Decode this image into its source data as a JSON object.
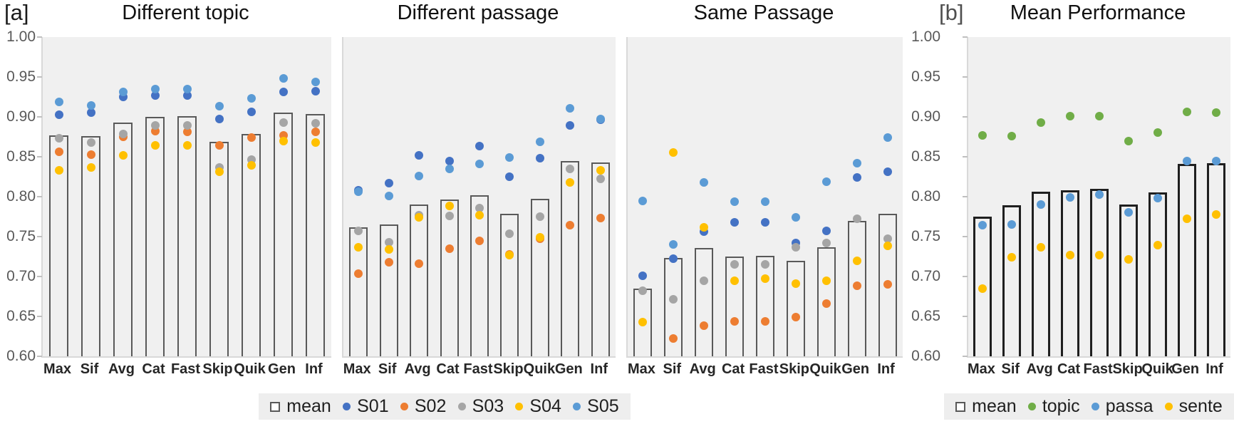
{
  "figure": {
    "label_a": "[a]",
    "label_b": "[b]",
    "y_axis": {
      "min": 0.6,
      "max": 1.0,
      "tick_labels": [
        "1.00",
        "0.95",
        "0.90",
        "0.85",
        "0.80",
        "0.75",
        "0.70",
        "0.65",
        "0.60"
      ]
    },
    "colors": {
      "s01": "#4472C4",
      "s02": "#ED7D31",
      "s03": "#A5A5A5",
      "s04": "#FFC000",
      "s05": "#5B9BD5",
      "topic": "#70AD47",
      "passa": "#5B9BD5",
      "sente": "#FFC000",
      "bar_outline": "#595959",
      "bar_outline_b": "#1F1F1F",
      "plot_bg": "#F0F0F0",
      "legend_bg": "#EEEEEE"
    }
  },
  "chart_data": [
    {
      "type": "bar",
      "subtype": "bar-with-scatter",
      "title": "Different topic",
      "categories": [
        "Max",
        "Sif",
        "Avg",
        "Cat",
        "Fast",
        "Skip",
        "Quik",
        "Gen",
        "Inf"
      ],
      "ylim": [
        0.6,
        1.0
      ],
      "y_labels_shown": true,
      "bar_series": {
        "name": "mean",
        "values": [
          0.877,
          0.876,
          0.893,
          0.9,
          0.901,
          0.869,
          0.879,
          0.905,
          0.904
        ]
      },
      "scatter_series": [
        {
          "name": "S01",
          "color": "#4472C4",
          "values": [
            0.903,
            0.905,
            0.925,
            0.927,
            0.927,
            0.897,
            0.906,
            0.931,
            0.932
          ]
        },
        {
          "name": "S02",
          "color": "#ED7D31",
          "values": [
            0.856,
            0.853,
            0.875,
            0.882,
            0.881,
            0.864,
            0.874,
            0.877,
            0.881
          ]
        },
        {
          "name": "S03",
          "color": "#A5A5A5",
          "values": [
            0.873,
            0.868,
            0.879,
            0.889,
            0.889,
            0.837,
            0.846,
            0.893,
            0.892
          ]
        },
        {
          "name": "S04",
          "color": "#FFC000",
          "values": [
            0.833,
            0.837,
            0.852,
            0.864,
            0.864,
            0.831,
            0.839,
            0.87,
            0.868
          ]
        },
        {
          "name": "S05",
          "color": "#5B9BD5",
          "values": [
            0.919,
            0.914,
            0.931,
            0.935,
            0.935,
            0.913,
            0.923,
            0.948,
            0.944
          ]
        }
      ]
    },
    {
      "type": "bar",
      "subtype": "bar-with-scatter",
      "title": "Different passage",
      "categories": [
        "Max",
        "Sif",
        "Avg",
        "Cat",
        "Fast",
        "Skip",
        "Quik",
        "Gen",
        "Inf"
      ],
      "ylim": [
        0.6,
        1.0
      ],
      "y_labels_shown": false,
      "bar_series": {
        "name": "mean",
        "values": [
          0.762,
          0.765,
          0.79,
          0.796,
          0.802,
          0.779,
          0.797,
          0.845,
          0.843
        ]
      },
      "scatter_series": [
        {
          "name": "S01",
          "color": "#4472C4",
          "values": [
            0.808,
            0.817,
            0.852,
            0.845,
            0.863,
            0.825,
            0.848,
            0.889,
            0.896
          ]
        },
        {
          "name": "S02",
          "color": "#ED7D31",
          "values": [
            0.704,
            0.718,
            0.716,
            0.735,
            0.745,
            0.728,
            0.747,
            0.764,
            0.773
          ]
        },
        {
          "name": "S03",
          "color": "#A5A5A5",
          "values": [
            0.757,
            0.743,
            0.777,
            0.776,
            0.786,
            0.754,
            0.775,
            0.835,
            0.822
          ]
        },
        {
          "name": "S04",
          "color": "#FFC000",
          "values": [
            0.737,
            0.734,
            0.774,
            0.788,
            0.777,
            0.727,
            0.749,
            0.818,
            0.833
          ]
        },
        {
          "name": "S05",
          "color": "#5B9BD5",
          "values": [
            0.806,
            0.801,
            0.826,
            0.835,
            0.841,
            0.849,
            0.869,
            0.911,
            0.897
          ]
        }
      ]
    },
    {
      "type": "bar",
      "subtype": "bar-with-scatter",
      "title": "Same Passage",
      "categories": [
        "Max",
        "Sif",
        "Avg",
        "Cat",
        "Fast",
        "Skip",
        "Quik",
        "Gen",
        "Inf"
      ],
      "ylim": [
        0.6,
        1.0
      ],
      "y_labels_shown": false,
      "bar_series": {
        "name": "mean",
        "values": [
          0.685,
          0.723,
          0.736,
          0.725,
          0.726,
          0.72,
          0.737,
          0.77,
          0.779
        ]
      },
      "scatter_series": [
        {
          "name": "S01",
          "color": "#4472C4",
          "values": [
            0.701,
            0.722,
            0.756,
            0.768,
            0.768,
            0.742,
            0.757,
            0.824,
            0.831
          ]
        },
        {
          "name": "S02",
          "color": "#ED7D31",
          "values": [
            null,
            0.622,
            0.638,
            0.644,
            0.644,
            0.649,
            0.666,
            0.688,
            0.69
          ]
        },
        {
          "name": "S03",
          "color": "#A5A5A5",
          "values": [
            0.682,
            0.671,
            0.695,
            0.715,
            0.715,
            0.737,
            0.742,
            0.772,
            0.747
          ]
        },
        {
          "name": "S04",
          "color": "#FFC000",
          "values": [
            0.643,
            0.855,
            0.762,
            0.695,
            0.697,
            0.691,
            0.695,
            0.72,
            0.738
          ]
        },
        {
          "name": "S05",
          "color": "#5B9BD5",
          "values": [
            0.795,
            0.74,
            0.818,
            0.794,
            0.794,
            0.774,
            0.819,
            0.842,
            0.874
          ]
        }
      ]
    },
    {
      "type": "bar",
      "subtype": "bar-with-scatter",
      "title": "Mean Performance",
      "categories": [
        "Max",
        "Sif",
        "Avg",
        "Cat",
        "Fast",
        "Skip",
        "Quik",
        "Gen",
        "Inf"
      ],
      "ylim": [
        0.6,
        1.0
      ],
      "y_labels_shown": true,
      "bar_series": {
        "name": "mean",
        "values": [
          0.775,
          0.789,
          0.806,
          0.808,
          0.81,
          0.79,
          0.805,
          0.841,
          0.842
        ]
      },
      "scatter_series": [
        {
          "name": "topic",
          "color": "#70AD47",
          "values": [
            0.877,
            0.876,
            0.893,
            0.901,
            0.901,
            0.87,
            0.88,
            0.906,
            0.905
          ]
        },
        {
          "name": "passa",
          "color": "#5B9BD5",
          "values": [
            0.764,
            0.765,
            0.79,
            0.799,
            0.803,
            0.78,
            0.798,
            0.845,
            0.845
          ]
        },
        {
          "name": "sente",
          "color": "#FFC000",
          "values": [
            0.685,
            0.724,
            0.737,
            0.727,
            0.727,
            0.721,
            0.739,
            0.772,
            0.778
          ]
        }
      ]
    }
  ],
  "legends": {
    "a": {
      "items": [
        {
          "label": "mean",
          "marker": "square",
          "color": "#ffffff"
        },
        {
          "label": "S01",
          "marker": "dot",
          "color": "#4472C4"
        },
        {
          "label": "S02",
          "marker": "dot",
          "color": "#ED7D31"
        },
        {
          "label": "S03",
          "marker": "dot",
          "color": "#A5A5A5"
        },
        {
          "label": "S04",
          "marker": "dot",
          "color": "#FFC000"
        },
        {
          "label": "S05",
          "marker": "dot",
          "color": "#5B9BD5"
        }
      ]
    },
    "b": {
      "items": [
        {
          "label": "mean",
          "marker": "square",
          "color": "#ffffff"
        },
        {
          "label": "topic",
          "marker": "dot",
          "color": "#70AD47"
        },
        {
          "label": "passa",
          "marker": "dot",
          "color": "#5B9BD5"
        },
        {
          "label": "sente",
          "marker": "dot",
          "color": "#FFC000"
        }
      ]
    }
  }
}
